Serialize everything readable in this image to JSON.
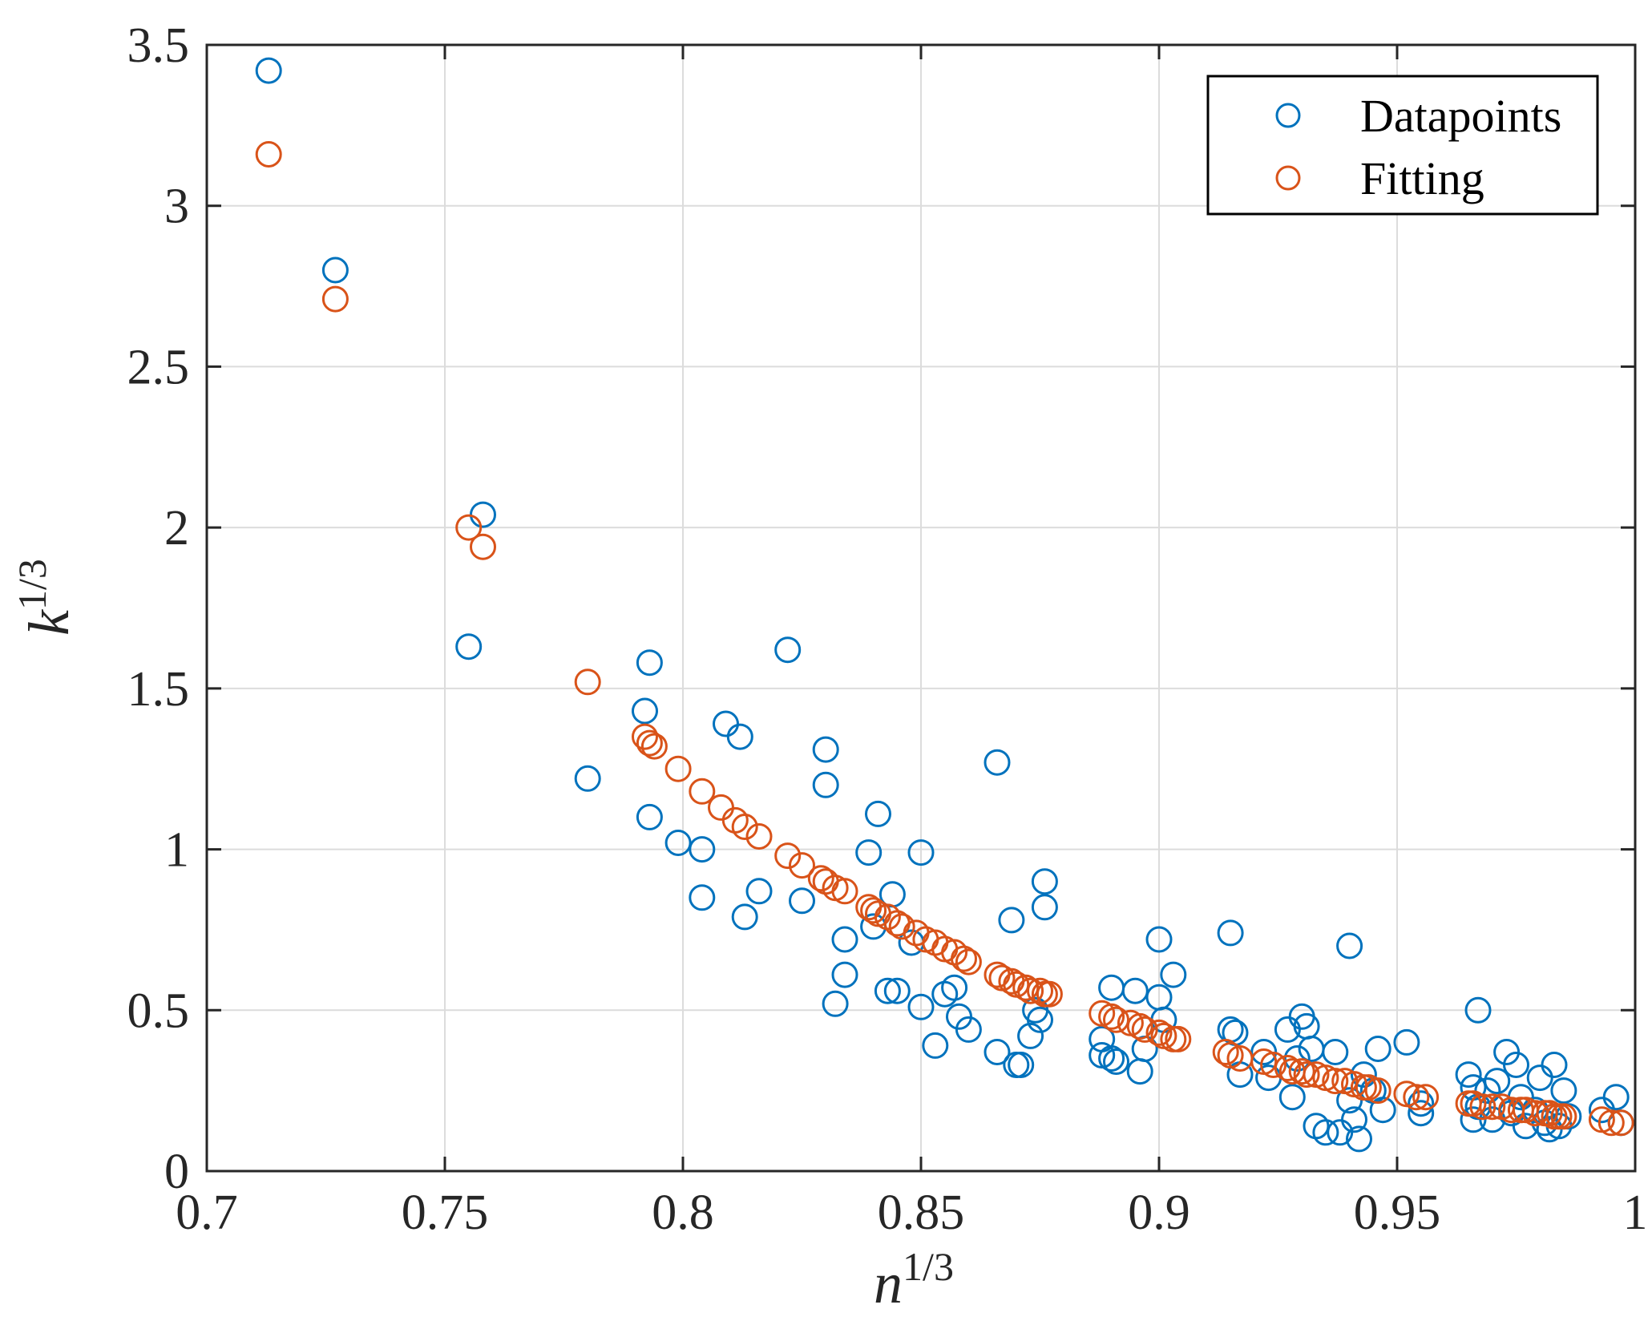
{
  "chart_data": {
    "type": "scatter",
    "title": "",
    "xlabel": {
      "base": "n",
      "exp": "1/3"
    },
    "ylabel": {
      "base": "k",
      "exp": "1/3"
    },
    "xlim": [
      0.7,
      1.0
    ],
    "ylim": [
      0,
      3.5
    ],
    "xticks": [
      0.7,
      0.75,
      0.8,
      0.85,
      0.9,
      0.95,
      1.0
    ],
    "xtick_labels": [
      "0.7",
      "0.75",
      "0.8",
      "0.85",
      "0.9",
      "0.95",
      "1"
    ],
    "yticks": [
      0,
      0.5,
      1,
      1.5,
      2,
      2.5,
      3,
      3.5
    ],
    "ytick_labels": [
      "0",
      "0.5",
      "1",
      "1.5",
      "2",
      "2.5",
      "3",
      "3.5"
    ],
    "grid": true,
    "legend_position": "top-right",
    "colors": {
      "Datapoints": "#0072BD",
      "Fitting": "#D95319",
      "axis": "#262626",
      "grid": "#dcdcdc"
    },
    "series": [
      {
        "name": "Datapoints",
        "marker": "circle-open",
        "points": [
          [
            0.713,
            3.42
          ],
          [
            0.727,
            2.8
          ],
          [
            0.758,
            2.04
          ],
          [
            0.755,
            1.63
          ],
          [
            0.78,
            1.22
          ],
          [
            0.792,
            1.43
          ],
          [
            0.793,
            1.58
          ],
          [
            0.793,
            1.1
          ],
          [
            0.799,
            1.02
          ],
          [
            0.804,
            1.0
          ],
          [
            0.804,
            0.85
          ],
          [
            0.809,
            1.39
          ],
          [
            0.812,
            1.35
          ],
          [
            0.813,
            0.79
          ],
          [
            0.816,
            0.87
          ],
          [
            0.822,
            1.62
          ],
          [
            0.825,
            0.84
          ],
          [
            0.83,
            1.31
          ],
          [
            0.83,
            1.2
          ],
          [
            0.832,
            0.52
          ],
          [
            0.834,
            0.72
          ],
          [
            0.834,
            0.61
          ],
          [
            0.839,
            0.99
          ],
          [
            0.84,
            0.76
          ],
          [
            0.841,
            1.11
          ],
          [
            0.843,
            0.56
          ],
          [
            0.844,
            0.86
          ],
          [
            0.845,
            0.56
          ],
          [
            0.848,
            0.71
          ],
          [
            0.85,
            0.99
          ],
          [
            0.85,
            0.51
          ],
          [
            0.853,
            0.39
          ],
          [
            0.855,
            0.55
          ],
          [
            0.857,
            0.57
          ],
          [
            0.858,
            0.48
          ],
          [
            0.86,
            0.44
          ],
          [
            0.866,
            1.27
          ],
          [
            0.866,
            0.37
          ],
          [
            0.869,
            0.78
          ],
          [
            0.87,
            0.33
          ],
          [
            0.871,
            0.33
          ],
          [
            0.873,
            0.42
          ],
          [
            0.874,
            0.5
          ],
          [
            0.875,
            0.47
          ],
          [
            0.876,
            0.82
          ],
          [
            0.876,
            0.9
          ],
          [
            0.888,
            0.36
          ],
          [
            0.888,
            0.41
          ],
          [
            0.89,
            0.57
          ],
          [
            0.89,
            0.35
          ],
          [
            0.891,
            0.34
          ],
          [
            0.895,
            0.56
          ],
          [
            0.896,
            0.31
          ],
          [
            0.897,
            0.38
          ],
          [
            0.9,
            0.72
          ],
          [
            0.9,
            0.54
          ],
          [
            0.901,
            0.47
          ],
          [
            0.903,
            0.61
          ],
          [
            0.915,
            0.74
          ],
          [
            0.915,
            0.44
          ],
          [
            0.916,
            0.43
          ],
          [
            0.917,
            0.3
          ],
          [
            0.922,
            0.37
          ],
          [
            0.923,
            0.29
          ],
          [
            0.927,
            0.44
          ],
          [
            0.928,
            0.23
          ],
          [
            0.929,
            0.35
          ],
          [
            0.93,
            0.48
          ],
          [
            0.931,
            0.45
          ],
          [
            0.932,
            0.38
          ],
          [
            0.933,
            0.14
          ],
          [
            0.935,
            0.12
          ],
          [
            0.937,
            0.37
          ],
          [
            0.938,
            0.12
          ],
          [
            0.94,
            0.7
          ],
          [
            0.94,
            0.22
          ],
          [
            0.941,
            0.16
          ],
          [
            0.942,
            0.1
          ],
          [
            0.943,
            0.3
          ],
          [
            0.945,
            0.25
          ],
          [
            0.946,
            0.38
          ],
          [
            0.947,
            0.19
          ],
          [
            0.952,
            0.4
          ],
          [
            0.955,
            0.21
          ],
          [
            0.955,
            0.18
          ],
          [
            0.965,
            0.3
          ],
          [
            0.966,
            0.26
          ],
          [
            0.966,
            0.16
          ],
          [
            0.967,
            0.2
          ],
          [
            0.967,
            0.5
          ],
          [
            0.969,
            0.25
          ],
          [
            0.97,
            0.16
          ],
          [
            0.971,
            0.28
          ],
          [
            0.973,
            0.37
          ],
          [
            0.974,
            0.18
          ],
          [
            0.975,
            0.33
          ],
          [
            0.976,
            0.23
          ],
          [
            0.977,
            0.14
          ],
          [
            0.979,
            0.19
          ],
          [
            0.98,
            0.29
          ],
          [
            0.981,
            0.15
          ],
          [
            0.982,
            0.13
          ],
          [
            0.983,
            0.33
          ],
          [
            0.984,
            0.14
          ],
          [
            0.985,
            0.25
          ],
          [
            0.986,
            0.17
          ],
          [
            0.993,
            0.19
          ],
          [
            0.996,
            0.23
          ],
          [
            0.997,
            0.15
          ]
        ]
      },
      {
        "name": "Fitting",
        "marker": "circle-open",
        "points": [
          [
            0.713,
            3.16
          ],
          [
            0.727,
            2.71
          ],
          [
            0.755,
            2.0
          ],
          [
            0.758,
            1.94
          ],
          [
            0.78,
            1.52
          ],
          [
            0.792,
            1.35
          ],
          [
            0.793,
            1.33
          ],
          [
            0.794,
            1.32
          ],
          [
            0.799,
            1.25
          ],
          [
            0.804,
            1.18
          ],
          [
            0.808,
            1.13
          ],
          [
            0.811,
            1.09
          ],
          [
            0.813,
            1.07
          ],
          [
            0.816,
            1.04
          ],
          [
            0.822,
            0.98
          ],
          [
            0.825,
            0.95
          ],
          [
            0.829,
            0.91
          ],
          [
            0.83,
            0.9
          ],
          [
            0.832,
            0.88
          ],
          [
            0.834,
            0.87
          ],
          [
            0.839,
            0.82
          ],
          [
            0.84,
            0.81
          ],
          [
            0.841,
            0.8
          ],
          [
            0.843,
            0.79
          ],
          [
            0.845,
            0.77
          ],
          [
            0.846,
            0.76
          ],
          [
            0.849,
            0.74
          ],
          [
            0.851,
            0.72
          ],
          [
            0.853,
            0.71
          ],
          [
            0.855,
            0.69
          ],
          [
            0.857,
            0.68
          ],
          [
            0.859,
            0.66
          ],
          [
            0.86,
            0.65
          ],
          [
            0.866,
            0.61
          ],
          [
            0.867,
            0.6
          ],
          [
            0.869,
            0.59
          ],
          [
            0.87,
            0.58
          ],
          [
            0.872,
            0.57
          ],
          [
            0.873,
            0.56
          ],
          [
            0.875,
            0.56
          ],
          [
            0.876,
            0.55
          ],
          [
            0.877,
            0.55
          ],
          [
            0.888,
            0.49
          ],
          [
            0.89,
            0.48
          ],
          [
            0.891,
            0.47
          ],
          [
            0.894,
            0.46
          ],
          [
            0.896,
            0.45
          ],
          [
            0.897,
            0.44
          ],
          [
            0.9,
            0.43
          ],
          [
            0.901,
            0.42
          ],
          [
            0.903,
            0.41
          ],
          [
            0.904,
            0.41
          ],
          [
            0.914,
            0.37
          ],
          [
            0.915,
            0.36
          ],
          [
            0.917,
            0.35
          ],
          [
            0.922,
            0.34
          ],
          [
            0.924,
            0.33
          ],
          [
            0.927,
            0.32
          ],
          [
            0.928,
            0.31
          ],
          [
            0.93,
            0.31
          ],
          [
            0.931,
            0.3
          ],
          [
            0.933,
            0.3
          ],
          [
            0.935,
            0.29
          ],
          [
            0.937,
            0.28
          ],
          [
            0.939,
            0.28
          ],
          [
            0.941,
            0.27
          ],
          [
            0.943,
            0.26
          ],
          [
            0.944,
            0.26
          ],
          [
            0.946,
            0.25
          ],
          [
            0.952,
            0.24
          ],
          [
            0.954,
            0.23
          ],
          [
            0.956,
            0.23
          ],
          [
            0.965,
            0.21
          ],
          [
            0.966,
            0.21
          ],
          [
            0.968,
            0.2
          ],
          [
            0.97,
            0.2
          ],
          [
            0.972,
            0.2
          ],
          [
            0.974,
            0.19
          ],
          [
            0.976,
            0.19
          ],
          [
            0.977,
            0.19
          ],
          [
            0.979,
            0.18
          ],
          [
            0.981,
            0.18
          ],
          [
            0.982,
            0.18
          ],
          [
            0.983,
            0.17
          ],
          [
            0.984,
            0.17
          ],
          [
            0.985,
            0.17
          ],
          [
            0.993,
            0.16
          ],
          [
            0.995,
            0.15
          ],
          [
            0.997,
            0.15
          ]
        ]
      }
    ]
  }
}
